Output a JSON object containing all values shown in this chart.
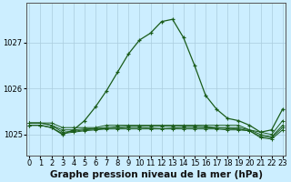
{
  "bg_color": "#cceeff",
  "grid_color": "#aaccdd",
  "line_color": "#1a5c1a",
  "hours": [
    0,
    1,
    2,
    3,
    4,
    5,
    6,
    7,
    8,
    9,
    10,
    11,
    12,
    13,
    14,
    15,
    16,
    17,
    18,
    19,
    20,
    21,
    22,
    23
  ],
  "main_series": [
    1025.2,
    1025.2,
    1025.15,
    1025.0,
    1025.1,
    1025.3,
    1025.6,
    1025.95,
    1026.35,
    1026.75,
    1027.05,
    1027.2,
    1027.45,
    1027.5,
    1027.1,
    1026.5,
    1025.85,
    1025.55,
    1025.35,
    1025.3,
    1025.2,
    1025.05,
    1025.1,
    1025.55
  ],
  "flat1": [
    1025.25,
    1025.25,
    1025.25,
    1025.15,
    1025.15,
    1025.15,
    1025.15,
    1025.2,
    1025.2,
    1025.2,
    1025.2,
    1025.2,
    1025.2,
    1025.2,
    1025.2,
    1025.2,
    1025.2,
    1025.2,
    1025.2,
    1025.2,
    1025.1,
    1025.05,
    1025.0,
    1025.3
  ],
  "flat2": [
    1025.25,
    1025.25,
    1025.2,
    1025.1,
    1025.1,
    1025.12,
    1025.13,
    1025.15,
    1025.17,
    1025.18,
    1025.18,
    1025.18,
    1025.18,
    1025.18,
    1025.18,
    1025.18,
    1025.17,
    1025.15,
    1025.15,
    1025.15,
    1025.1,
    1025.0,
    1024.95,
    1025.2
  ],
  "flat3": [
    1025.25,
    1025.25,
    1025.2,
    1025.05,
    1025.07,
    1025.1,
    1025.12,
    1025.13,
    1025.14,
    1025.15,
    1025.15,
    1025.14,
    1025.13,
    1025.14,
    1025.15,
    1025.15,
    1025.15,
    1025.14,
    1025.13,
    1025.12,
    1025.08,
    1024.96,
    1024.93,
    1025.15
  ],
  "flat4": [
    1025.2,
    1025.2,
    1025.15,
    1025.02,
    1025.05,
    1025.08,
    1025.1,
    1025.12,
    1025.12,
    1025.12,
    1025.12,
    1025.12,
    1025.12,
    1025.12,
    1025.12,
    1025.12,
    1025.12,
    1025.12,
    1025.1,
    1025.1,
    1025.08,
    1024.93,
    1024.9,
    1025.1
  ],
  "ylim": [
    1024.55,
    1027.85
  ],
  "yticks": [
    1025.0,
    1026.0,
    1027.0
  ],
  "xlim": [
    -0.3,
    23.3
  ],
  "xlabel": "Graphe pression niveau de la mer (hPa)",
  "tick_fontsize": 6.0,
  "xlabel_fontsize": 7.5
}
